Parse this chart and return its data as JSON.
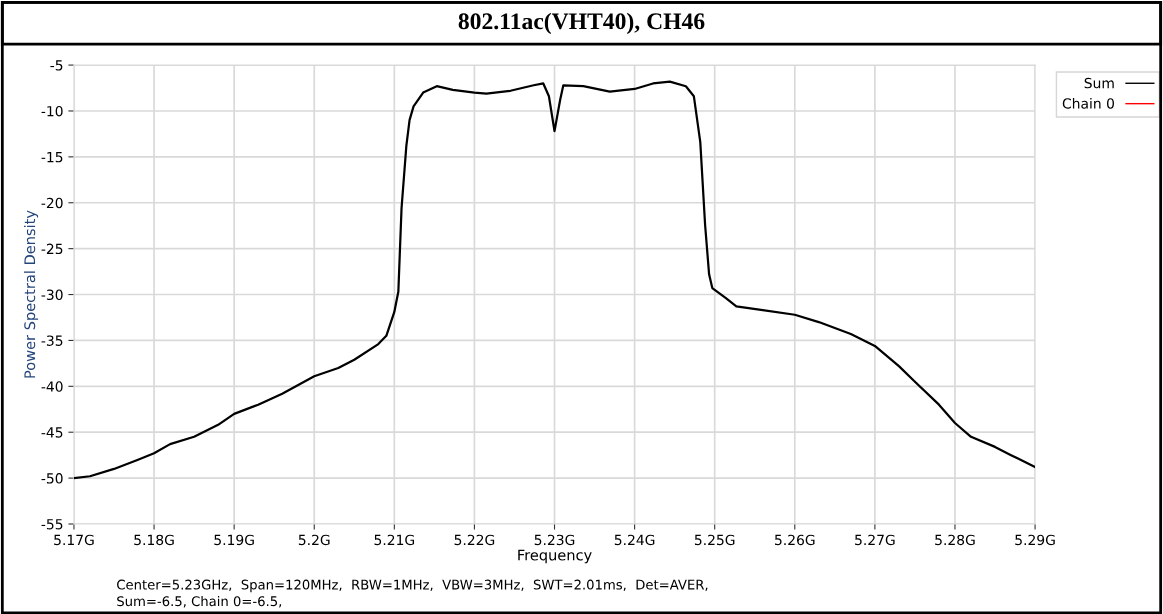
{
  "chart_data": {
    "type": "line",
    "title": "802.11ac(VHT40), CH46",
    "xlabel": "Frequency",
    "ylabel": "Power Spectral Density",
    "annotations": [
      "Center=5.23GHz,  Span=120MHz,  RBW=1MHz,  VBW=3MHz,  SWT=2.01ms,  Det=AVER,",
      "Sum=-6.5, Chain 0=-6.5,"
    ],
    "x": [
      5.17,
      5.172,
      5.175,
      5.178,
      5.18,
      5.182,
      5.185,
      5.188,
      5.19,
      5.193,
      5.196,
      5.2,
      5.203,
      5.205,
      5.208,
      5.209,
      5.21,
      5.2102,
      5.2105,
      5.2109,
      5.2115,
      5.2119,
      5.2124,
      5.2136,
      5.2153,
      5.2173,
      5.22,
      5.2215,
      5.2245,
      5.2274,
      5.2286,
      5.2293,
      5.23,
      5.2307,
      5.2311,
      5.2336,
      5.2369,
      5.24,
      5.2423,
      5.2444,
      5.2464,
      5.2474,
      5.2482,
      5.2488,
      5.2493,
      5.2497,
      5.2514,
      5.2527,
      5.256,
      5.26,
      5.263,
      5.267,
      5.27,
      5.273,
      5.275,
      5.278,
      5.28,
      5.282,
      5.285,
      5.287,
      5.29
    ],
    "series": [
      {
        "name": "Sum",
        "color": "#000000",
        "values": [
          -50,
          -49.8,
          -49,
          -48,
          -47.3,
          -46.3,
          -45.5,
          -44.2,
          -43,
          -42,
          -40.8,
          -38.9,
          -38,
          -37.1,
          -35.4,
          -34.5,
          -31.9,
          -31,
          -29.7,
          -20.6,
          -13.8,
          -11,
          -9.5,
          -8,
          -7.3,
          -7.7,
          -8,
          -8.1,
          -7.8,
          -7.2,
          -7,
          -8.4,
          -12.2,
          -8.8,
          -7.2,
          -7.3,
          -7.9,
          -7.6,
          -7,
          -6.8,
          -7.3,
          -8.4,
          -13.4,
          -22.4,
          -27.8,
          -29.3,
          -30.4,
          -31.3,
          -31.7,
          -32.2,
          -33,
          -34.3,
          -35.6,
          -37.8,
          -39.5,
          -42,
          -44,
          -45.5,
          -46.6,
          -47.5,
          -48.8
        ]
      },
      {
        "name": "Chain 0",
        "color": "#ff0000",
        "values": [
          null,
          null,
          null,
          null,
          null,
          null,
          null,
          null,
          null,
          null,
          null,
          null,
          null,
          null,
          null,
          null,
          null,
          null,
          null,
          null,
          null,
          null,
          null,
          null,
          null,
          null,
          null,
          null,
          null,
          null,
          null,
          null,
          null,
          null,
          null,
          null,
          null,
          null,
          null,
          null,
          null,
          null,
          null,
          null,
          null,
          null,
          null,
          null,
          null,
          null,
          null,
          null,
          null,
          null,
          null,
          null,
          null,
          null,
          null,
          null,
          null
        ]
      }
    ],
    "xlim": [
      5.17,
      5.29
    ],
    "xticks": [
      {
        "value": 5.17,
        "label": "5.17G"
      },
      {
        "value": 5.18,
        "label": "5.18G"
      },
      {
        "value": 5.19,
        "label": "5.19G"
      },
      {
        "value": 5.2,
        "label": "5.2G"
      },
      {
        "value": 5.21,
        "label": "5.21G"
      },
      {
        "value": 5.22,
        "label": "5.22G"
      },
      {
        "value": 5.23,
        "label": "5.23G"
      },
      {
        "value": 5.24,
        "label": "5.24G"
      },
      {
        "value": 5.25,
        "label": "5.25G"
      },
      {
        "value": 5.26,
        "label": "5.26G"
      },
      {
        "value": 5.27,
        "label": "5.27G"
      },
      {
        "value": 5.28,
        "label": "5.28G"
      },
      {
        "value": 5.29,
        "label": "5.29G"
      }
    ],
    "ylim": [
      -55,
      -5
    ],
    "yticks": [
      -5,
      -10,
      -15,
      -20,
      -25,
      -30,
      -35,
      -40,
      -45,
      -50,
      -55
    ],
    "grid": true,
    "legend": "top right",
    "marker": "none",
    "line_style": "solid"
  }
}
